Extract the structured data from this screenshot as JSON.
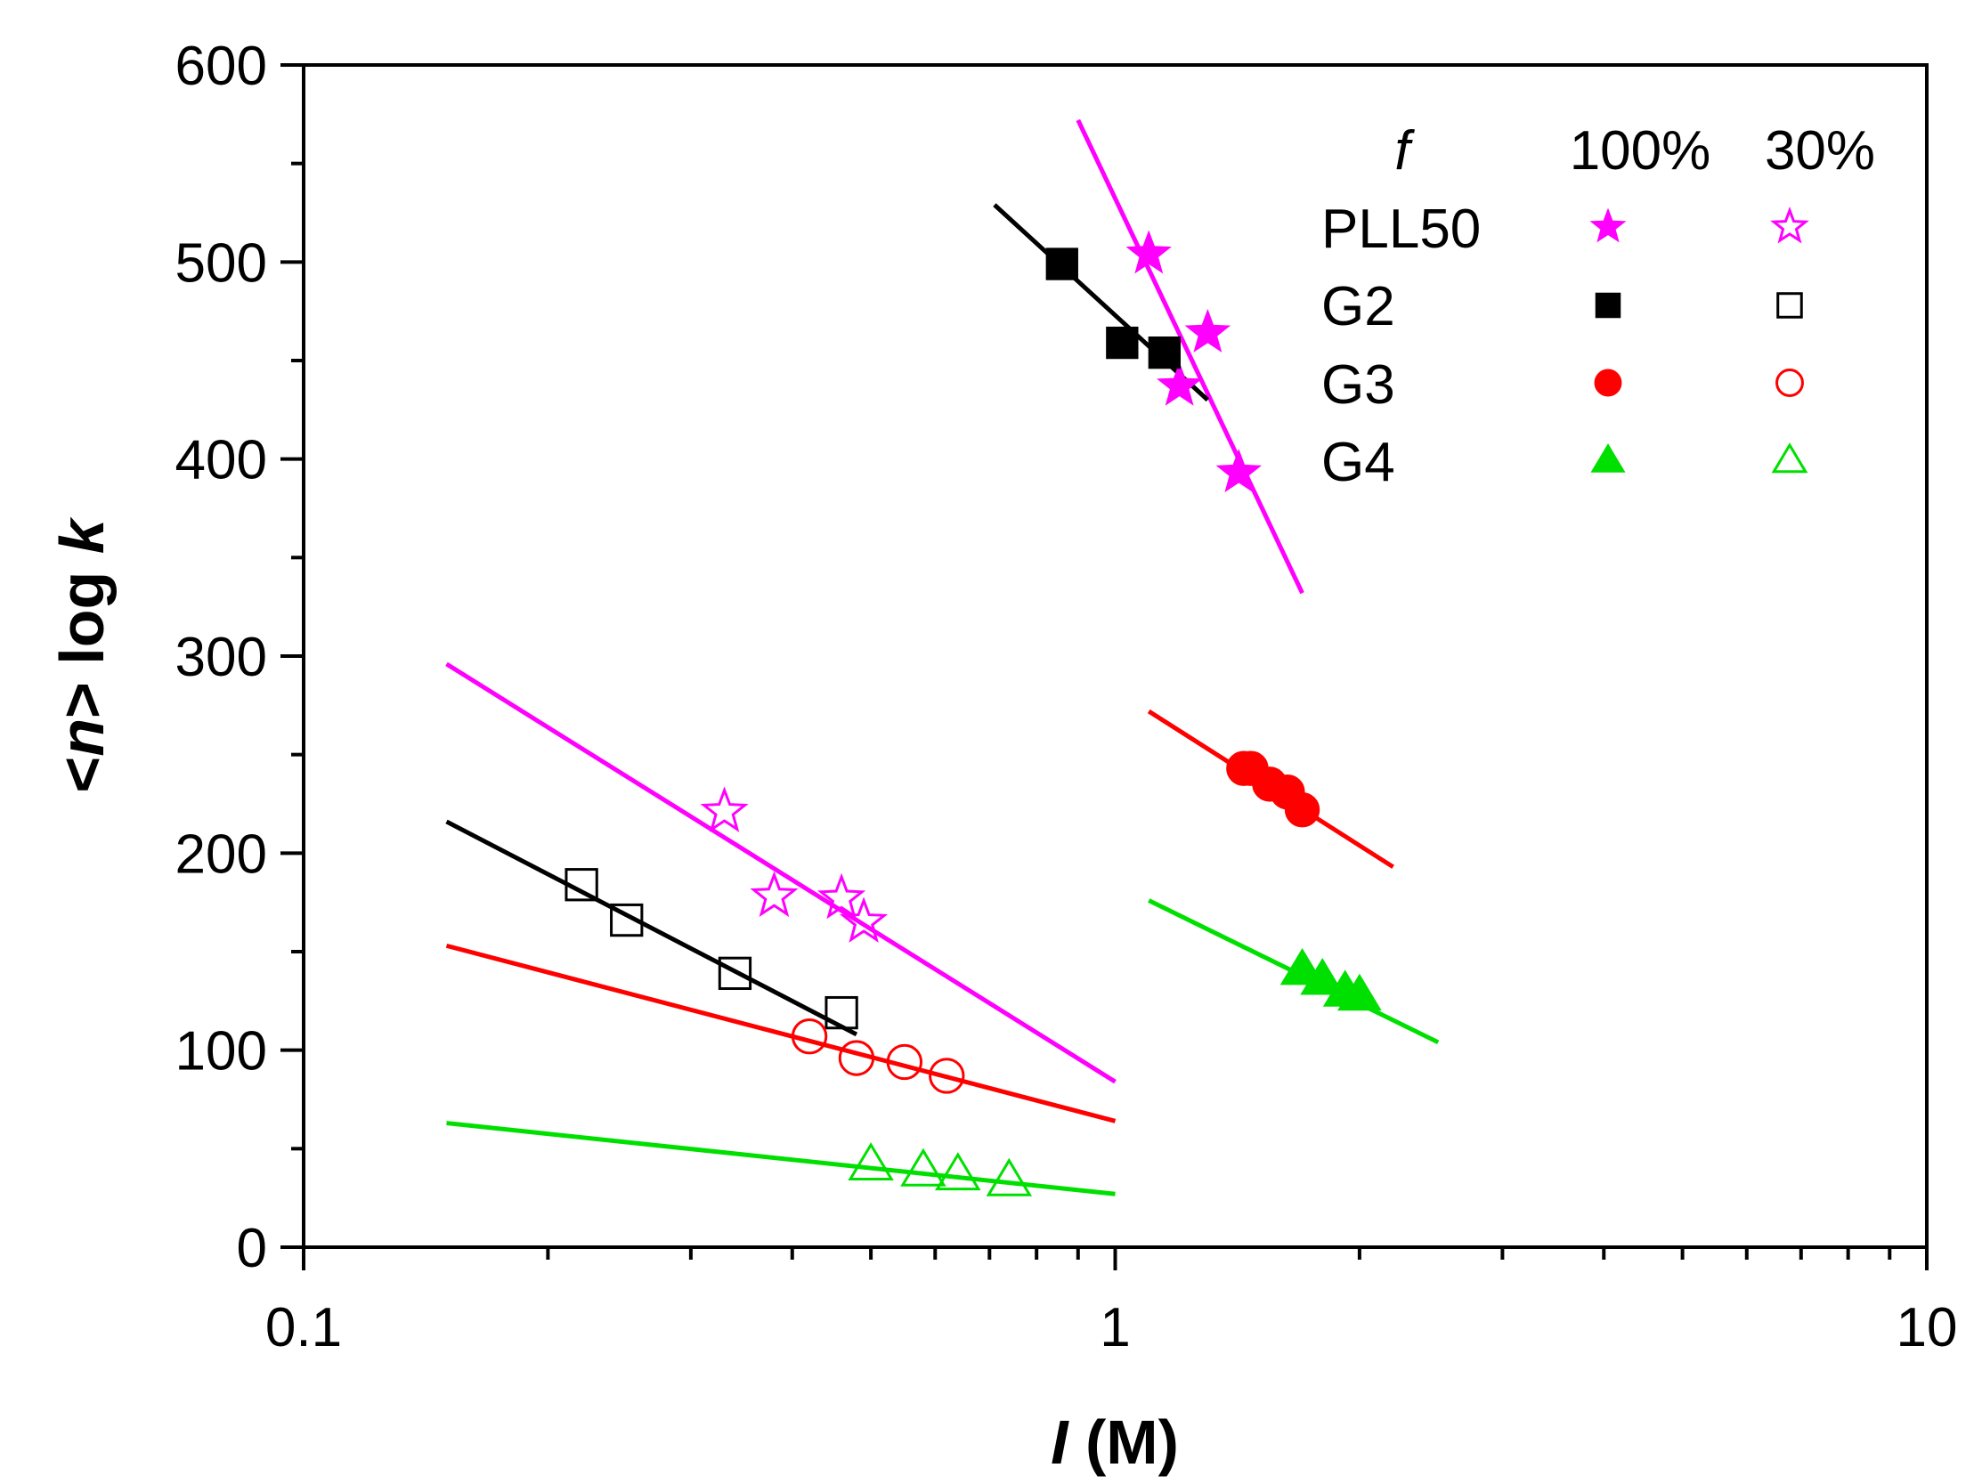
{
  "chart_data": {
    "type": "scatter",
    "xscale": "log",
    "xlim": [
      0.1,
      10
    ],
    "ylim": [
      0,
      600
    ],
    "xlabel": {
      "italic": "I",
      "rest": " (M)"
    },
    "ylabel": {
      "pre": "<",
      "italic_n": "n",
      "mid": "> log ",
      "italic_k": "k"
    },
    "xticks": [
      {
        "value": 0.1,
        "label": "0.1"
      },
      {
        "value": 1,
        "label": "1"
      },
      {
        "value": 10,
        "label": "10"
      }
    ],
    "yticks": [
      {
        "value": 0,
        "label": "0"
      },
      {
        "value": 100,
        "label": "100"
      },
      {
        "value": 200,
        "label": "200"
      },
      {
        "value": 300,
        "label": "300"
      },
      {
        "value": 400,
        "label": "400"
      },
      {
        "value": 500,
        "label": "500"
      },
      {
        "value": 600,
        "label": "600"
      }
    ],
    "legend": {
      "header": {
        "f": "f",
        "col1": "100%",
        "col2": "30%"
      },
      "rows": [
        {
          "label": "PLL50",
          "color": "#ff00ff",
          "marker": "star"
        },
        {
          "label": "G2",
          "color": "#000000",
          "marker": "square"
        },
        {
          "label": "G3",
          "color": "#ff0000",
          "marker": "circle"
        },
        {
          "label": "G4",
          "color": "#00e000",
          "marker": "triangle"
        }
      ]
    },
    "series": [
      {
        "name": "PLL50 100%",
        "color": "#ff00ff",
        "marker": "star",
        "filled": true,
        "x": [
          1.1,
          1.2,
          1.3,
          1.42
        ],
        "y": [
          504,
          437,
          464,
          393
        ],
        "fit": {
          "x": [
            0.9,
            1.7
          ],
          "y": [
            572,
            332
          ]
        }
      },
      {
        "name": "G2 100%",
        "color": "#000000",
        "marker": "square",
        "filled": true,
        "x": [
          0.86,
          1.02,
          1.15
        ],
        "y": [
          499,
          459,
          454
        ],
        "fit": {
          "x": [
            0.71,
            1.3
          ],
          "y": [
            529,
            430
          ]
        }
      },
      {
        "name": "G3 100%",
        "color": "#ff0000",
        "marker": "circle",
        "filled": true,
        "x": [
          1.44,
          1.47,
          1.55,
          1.63,
          1.7
        ],
        "y": [
          243,
          243,
          235,
          231,
          222
        ],
        "fit": {
          "x": [
            1.1,
            2.2
          ],
          "y": [
            272,
            193
          ]
        }
      },
      {
        "name": "G4 100%",
        "color": "#00e000",
        "marker": "triangle",
        "filled": true,
        "x": [
          1.7,
          1.8,
          1.92,
          2.0
        ],
        "y": [
          141,
          136,
          130,
          128
        ],
        "fit": {
          "x": [
            1.1,
            2.5
          ],
          "y": [
            176,
            104
          ]
        }
      },
      {
        "name": "PLL50 30%",
        "color": "#ff00ff",
        "marker": "star",
        "filled": false,
        "x": [
          0.33,
          0.38,
          0.46,
          0.49
        ],
        "y": [
          221,
          178,
          177,
          165
        ],
        "fit": {
          "x": [
            0.15,
            1.0
          ],
          "y": [
            296,
            84
          ]
        }
      },
      {
        "name": "G2 30%",
        "color": "#000000",
        "marker": "square",
        "filled": false,
        "x": [
          0.22,
          0.25,
          0.34,
          0.46
        ],
        "y": [
          184,
          166,
          139,
          119
        ],
        "fit": {
          "x": [
            0.15,
            0.48
          ],
          "y": [
            216,
            108
          ]
        }
      },
      {
        "name": "G3 30%",
        "color": "#ff0000",
        "marker": "circle",
        "filled": false,
        "x": [
          0.42,
          0.48,
          0.55,
          0.62
        ],
        "y": [
          107,
          96,
          94,
          87
        ],
        "fit": {
          "x": [
            0.15,
            1.0
          ],
          "y": [
            153,
            64
          ]
        }
      },
      {
        "name": "G4 30%",
        "color": "#00e000",
        "marker": "triangle",
        "filled": false,
        "x": [
          0.5,
          0.58,
          0.64,
          0.74
        ],
        "y": [
          42,
          39,
          37,
          34
        ],
        "fit": {
          "x": [
            0.15,
            1.0
          ],
          "y": [
            63,
            27
          ]
        }
      }
    ]
  }
}
